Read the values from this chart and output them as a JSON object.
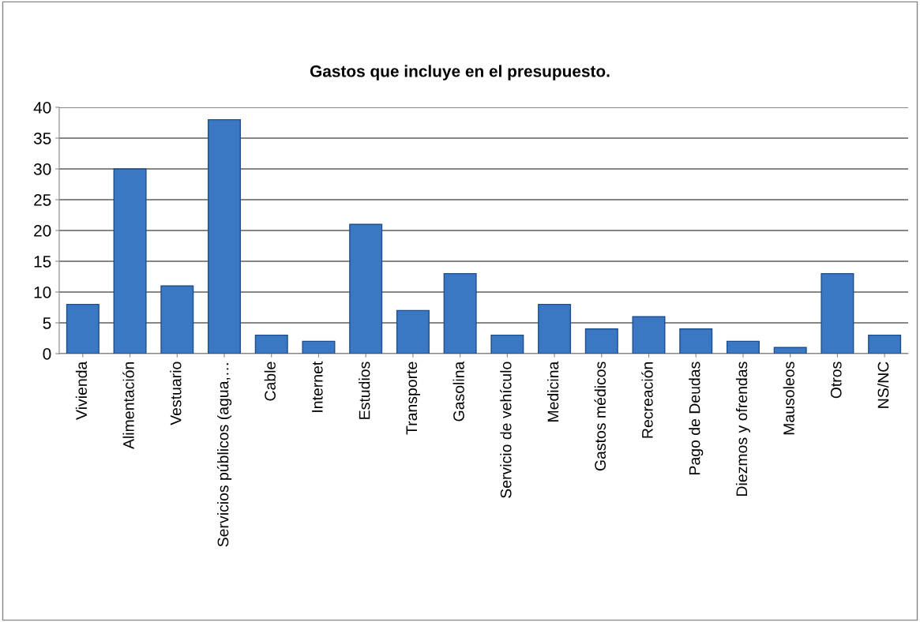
{
  "chart_data": {
    "type": "bar",
    "title": "Gastos que incluye en el presupuesto.",
    "categories": [
      "Vivienda",
      "Alimentación",
      "Vestuario",
      "Servicios públicos (agua,…",
      "Cable",
      "Internet",
      "Estudios",
      "Transporte",
      "Gasolina",
      "Servicio de vehículo",
      "Medicina",
      "Gastos médicos",
      "Recreación",
      "Pago de Deudas",
      "Diezmos y ofrendas",
      "Mausoleos",
      "Otros",
      "NS/NC"
    ],
    "values": [
      8,
      30,
      11,
      38,
      3,
      2,
      21,
      7,
      13,
      3,
      8,
      4,
      6,
      4,
      2,
      1,
      13,
      3
    ],
    "color": "#3b78c4",
    "ylim": [
      0,
      40
    ],
    "yticks": [
      0,
      5,
      10,
      15,
      20,
      25,
      30,
      35,
      40
    ],
    "grid": "y"
  }
}
